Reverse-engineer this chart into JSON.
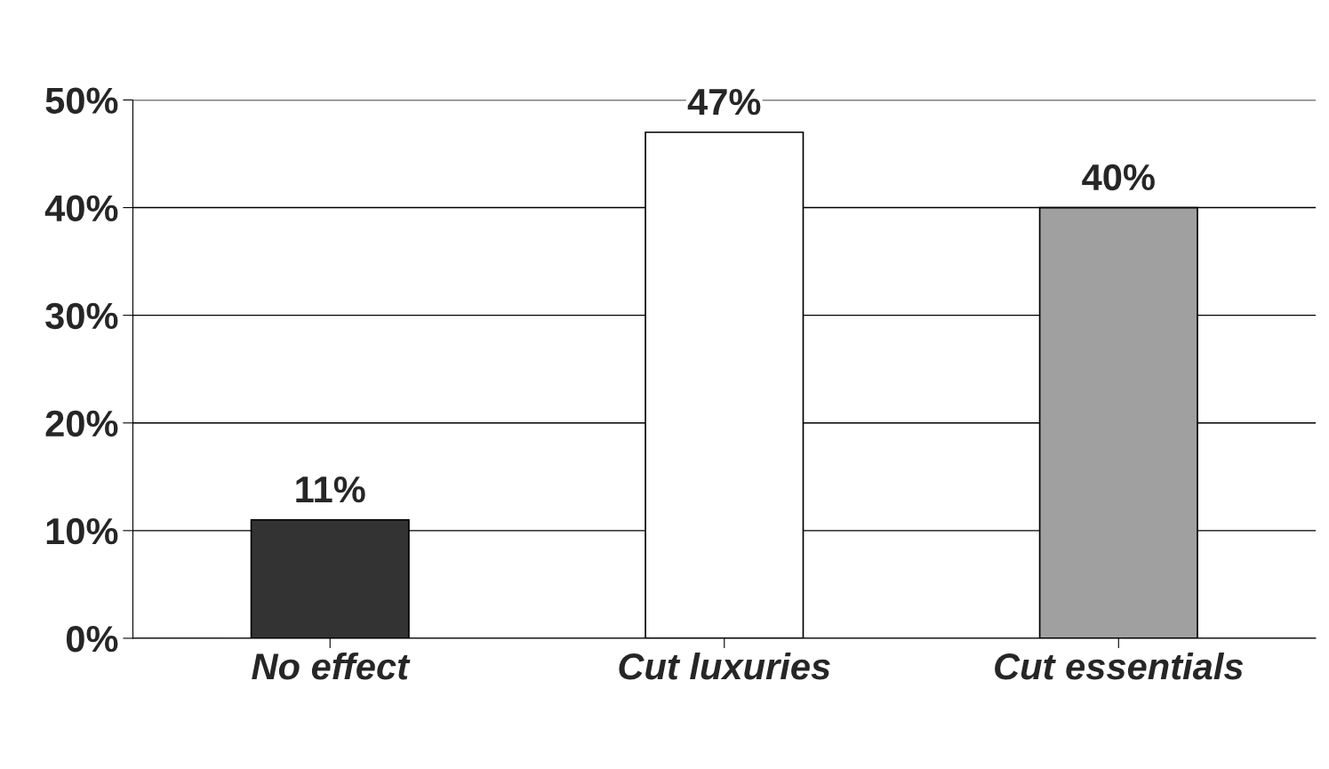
{
  "chart_data": {
    "type": "bar",
    "categories": [
      "No effect",
      "Cut luxuries",
      "Cut essentials"
    ],
    "values": [
      11,
      47,
      40
    ],
    "colors": [
      "#333333",
      "#ffffff",
      "#a0a0a0"
    ],
    "value_labels": [
      "11%",
      "47%",
      "40%"
    ],
    "ylim": [
      0,
      50
    ],
    "yticks": [
      {
        "value": 0,
        "label": "0%"
      },
      {
        "value": 10,
        "label": "10%"
      },
      {
        "value": 20,
        "label": "20%"
      },
      {
        "value": 30,
        "label": "30%"
      },
      {
        "value": 40,
        "label": "40%"
      },
      {
        "value": 50,
        "label": "50%"
      }
    ],
    "grid": "y"
  }
}
